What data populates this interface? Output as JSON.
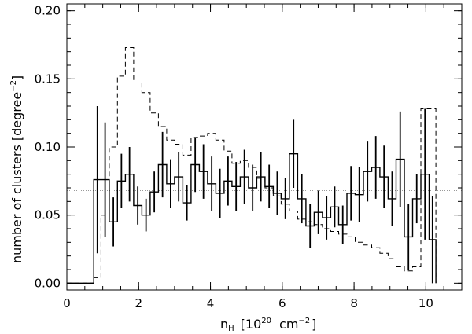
{
  "chart_data": {
    "type": "line",
    "xlabel_main": "n",
    "xlabel_sub": "H",
    "xlabel_rest": "[10",
    "xlabel_exp": "20",
    "xlabel_unit": "cm",
    "xlabel_unit_exp": "−2",
    "xlabel_close": "]",
    "ylabel_main": "number of clusters  [degree",
    "ylabel_exp": "−2",
    "ylabel_close": "]",
    "xlim": [
      0,
      11
    ],
    "ylim": [
      -0.005,
      0.205
    ],
    "xticks": [
      0,
      2,
      4,
      6,
      8,
      10
    ],
    "xtick_labels": [
      "0",
      "2",
      "4",
      "6",
      "8",
      "10"
    ],
    "yticks": [
      0.0,
      0.05,
      0.1,
      0.15,
      0.2
    ],
    "ytick_labels": [
      "0.00",
      "0.05",
      "0.10",
      "0.15",
      "0.20"
    ],
    "reference_line": 0.068,
    "bin_edges": [
      0.0,
      0.75,
      0.95,
      1.18,
      1.41,
      1.63,
      1.86,
      2.09,
      2.32,
      2.55,
      2.78,
      3.0,
      3.23,
      3.46,
      3.69,
      3.92,
      4.15,
      4.38,
      4.6,
      4.83,
      5.06,
      5.29,
      5.52,
      5.75,
      5.97,
      6.2,
      6.43,
      6.66,
      6.89,
      7.12,
      7.35,
      7.57,
      7.8,
      8.03,
      8.26,
      8.49,
      8.72,
      8.95,
      9.17,
      9.4,
      9.63,
      9.86,
      10.09,
      10.28
    ],
    "series": [
      {
        "style": "solid",
        "values": [
          0.0,
          0.076,
          0.076,
          0.045,
          0.075,
          0.08,
          0.057,
          0.05,
          0.067,
          0.087,
          0.073,
          0.078,
          0.059,
          0.087,
          0.082,
          0.073,
          0.066,
          0.075,
          0.071,
          0.078,
          0.07,
          0.078,
          0.071,
          0.066,
          0.062,
          0.095,
          0.062,
          0.042,
          0.052,
          0.048,
          0.056,
          0.043,
          0.066,
          0.065,
          0.082,
          0.085,
          0.078,
          0.062,
          0.091,
          0.034,
          0.062,
          0.08,
          0.032
        ],
        "errors": [
          0.0,
          0.054,
          0.042,
          0.018,
          0.02,
          0.02,
          0.014,
          0.012,
          0.015,
          0.024,
          0.018,
          0.018,
          0.013,
          0.02,
          0.02,
          0.02,
          0.018,
          0.018,
          0.018,
          0.02,
          0.017,
          0.018,
          0.016,
          0.016,
          0.015,
          0.025,
          0.018,
          0.016,
          0.016,
          0.016,
          0.015,
          0.014,
          0.02,
          0.02,
          0.022,
          0.023,
          0.023,
          0.02,
          0.035,
          0.024,
          0.018,
          0.048,
          0.032
        ]
      },
      {
        "style": "dashed",
        "values": [
          0.0,
          0.004,
          0.05,
          0.1,
          0.152,
          0.173,
          0.147,
          0.14,
          0.125,
          0.115,
          0.105,
          0.102,
          0.094,
          0.107,
          0.108,
          0.11,
          0.105,
          0.097,
          0.088,
          0.09,
          0.085,
          0.077,
          0.07,
          0.064,
          0.058,
          0.053,
          0.047,
          0.045,
          0.043,
          0.04,
          0.038,
          0.036,
          0.034,
          0.03,
          0.028,
          0.026,
          0.022,
          0.018,
          0.012,
          0.009,
          0.012,
          0.128,
          0.128
        ]
      }
    ]
  }
}
